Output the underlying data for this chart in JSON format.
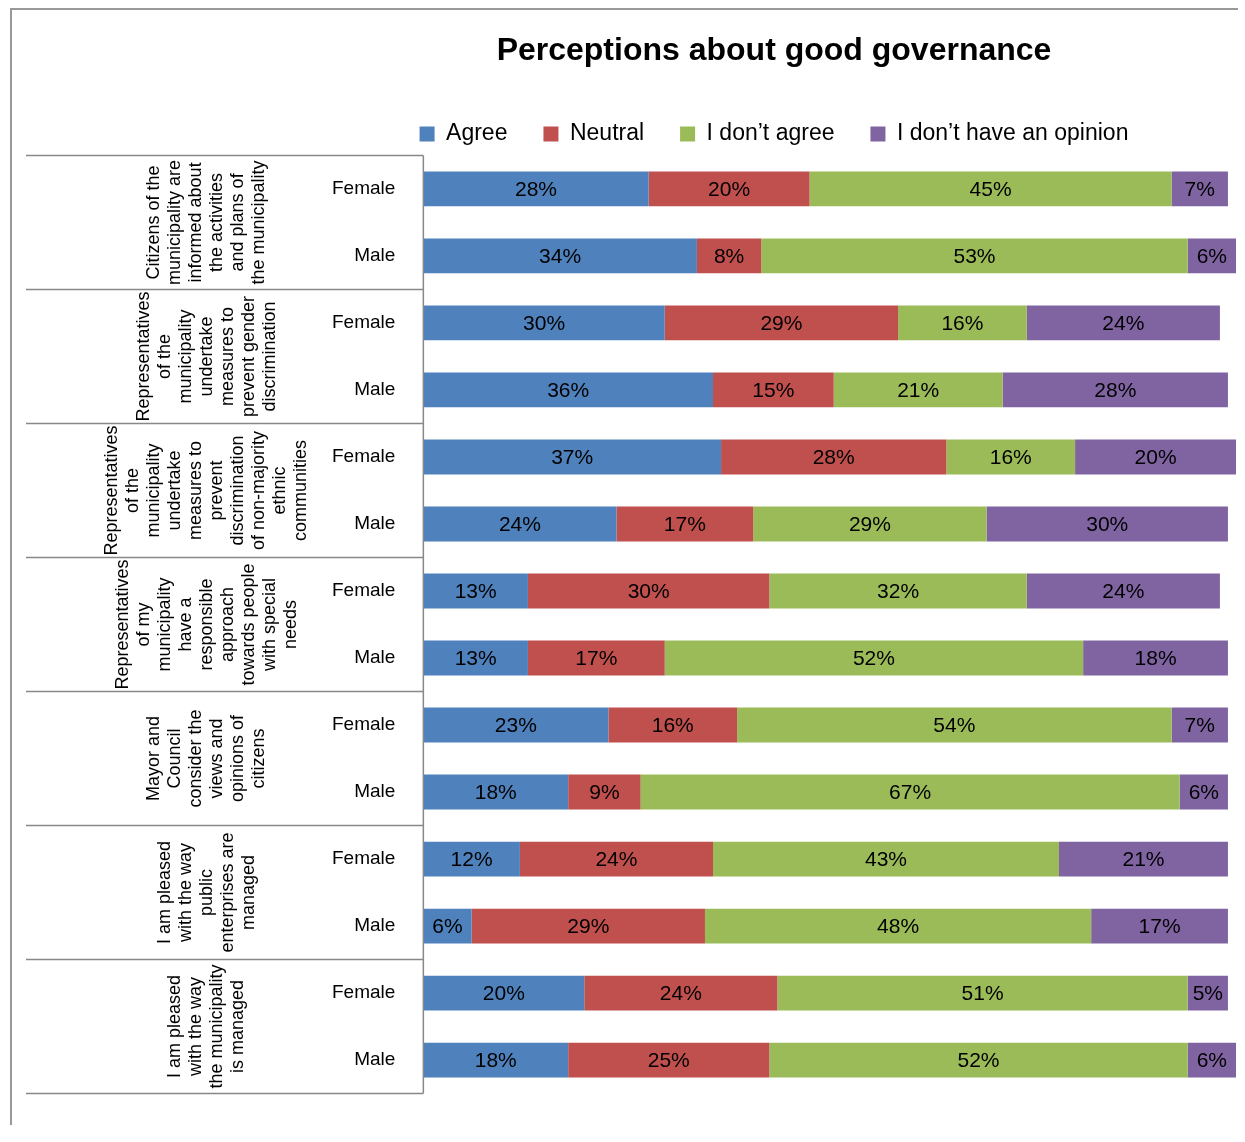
{
  "chart_data": {
    "type": "bar",
    "orientation": "horizontal",
    "stacked": true,
    "title": "Perceptions about good governance",
    "legend": "top",
    "categories": [
      "Female",
      "Male",
      "Female",
      "Male",
      "Female",
      "Male",
      "Female",
      "Male",
      "Female",
      "Male",
      "Female",
      "Male",
      "Female",
      "Male"
    ],
    "annotations": [
      "Citizens of the municipality are informed about the activities and plans of the municipality",
      "Representatives of the municipality undertake measures to prevent gender discrimination",
      "Representatives of the municipality undertake measures to prevent discrimination of non-majority ethnic communities",
      "Representatives of my municipality have a responsible approach towards people with special needs",
      "Mayor and Council consider the views and opinions of citizens",
      "I am pleased with the way public enterprises are managed",
      "I am pleased with the way the municipality is managed"
    ],
    "series": [
      {
        "name": "Agree",
        "color": "#4f81bd",
        "values": [
          28,
          34,
          30,
          36,
          37,
          24,
          13,
          13,
          23,
          18,
          12,
          6,
          20,
          18
        ],
        "value_labels": [
          "28%",
          "34%",
          "30%",
          "36%",
          "37%",
          "24%",
          "13%",
          "13%",
          "23%",
          "18%",
          "12%",
          "6%",
          "20%",
          "18%"
        ]
      },
      {
        "name": "Neutral",
        "color": "#c0504d",
        "values": [
          20,
          8,
          29,
          15,
          28,
          17,
          30,
          17,
          16,
          9,
          24,
          29,
          24,
          25
        ],
        "value_labels": [
          "20%",
          "8%",
          "29%",
          "15%",
          "28%",
          "17%",
          "30%",
          "17%",
          "16%",
          "9%",
          "24%",
          "29%",
          "24%",
          "25%"
        ]
      },
      {
        "name": "I don’t agree",
        "color": "#9bbb59",
        "values": [
          45,
          53,
          16,
          21,
          16,
          29,
          32,
          52,
          54,
          67,
          43,
          48,
          51,
          52
        ],
        "value_labels": [
          "45%",
          "53%",
          "16%",
          "21%",
          "16%",
          "29%",
          "32%",
          "52%",
          "54%",
          "67%",
          "43%",
          "48%",
          "51%",
          "52%"
        ]
      },
      {
        "name": "I don’t have an opinion",
        "color": "#8064a2",
        "values": [
          7,
          6,
          24,
          28,
          20,
          30,
          24,
          18,
          7,
          6,
          21,
          17,
          5,
          6
        ],
        "value_labels": [
          "7%",
          "6%",
          "24%",
          "28%",
          "20%",
          "30%",
          "24%",
          "18%",
          "7%",
          "6%",
          "21%",
          "17%",
          "5%",
          "6%"
        ]
      }
    ]
  }
}
